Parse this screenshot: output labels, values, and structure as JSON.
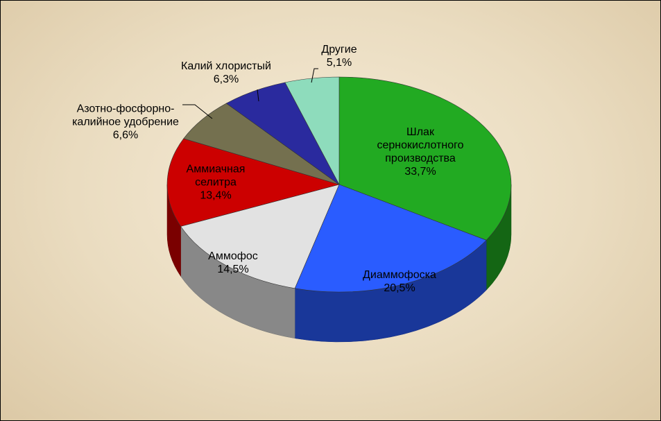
{
  "chart_data": {
    "type": "pie3d",
    "categories": [
      "Шлак сернокислотного производства",
      "Диаммофоска",
      "Аммофос",
      "Аммиачная селитра",
      "Азотно-фосфорно-калийное удобрение",
      "Калий хлористый",
      "Другие"
    ],
    "values": [
      33.7,
      20.5,
      14.5,
      13.4,
      6.6,
      6.3,
      5.1
    ],
    "value_labels": [
      "33,7%",
      "20,5%",
      "14,5%",
      "13,4%",
      "6,6%",
      "6,3%",
      "5,1%"
    ],
    "colors": [
      "#22aa22",
      "#2a5cff",
      "#e2e2e2",
      "#cc0000",
      "#74704f",
      "#2a2a9e",
      "#8edcbc"
    ]
  }
}
